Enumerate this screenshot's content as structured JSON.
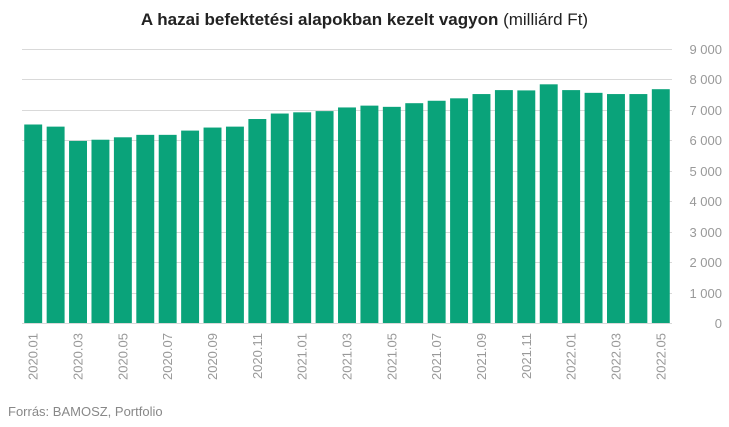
{
  "title_bold": "A hazai befektetési alapokban kezelt vagyon",
  "title_unit": " (milliárd Ft)",
  "source": "Forrás: BAMOSZ, Portfolio",
  "colors": {
    "bar": "#0aa37a",
    "grid": "#d9d9d9",
    "tick": "#999999"
  },
  "chart_data": {
    "type": "bar",
    "title": "A hazai befektetési alapokban kezelt vagyon (milliárd Ft)",
    "categories": [
      "2020.01",
      "2020.02",
      "2020.03",
      "2020.04",
      "2020.05",
      "2020.06",
      "2020.07",
      "2020.08",
      "2020.09",
      "2020.10",
      "2020.11",
      "2020.12",
      "2021.01",
      "2021.02",
      "2021.03",
      "2021.04",
      "2021.05",
      "2021.06",
      "2021.07",
      "2021.08",
      "2021.09",
      "2021.10",
      "2021.11",
      "2021.12",
      "2022.01",
      "2022.02",
      "2022.03",
      "2022.04",
      "2022.05"
    ],
    "x_tick_labels": [
      "2020.01",
      "",
      "2020.03",
      "",
      "2020.05",
      "",
      "2020.07",
      "",
      "2020.09",
      "",
      "2020.11",
      "",
      "2021.01",
      "",
      "2021.03",
      "",
      "2021.05",
      "",
      "2021.07",
      "",
      "2021.09",
      "",
      "2021.11",
      "",
      "2022.01",
      "",
      "2022.03",
      "",
      "2022.05"
    ],
    "values": [
      6520,
      6450,
      5980,
      6020,
      6100,
      6180,
      6180,
      6320,
      6420,
      6450,
      6700,
      6880,
      6920,
      6960,
      7080,
      7140,
      7100,
      7220,
      7300,
      7380,
      7520,
      7650,
      7640,
      7840,
      7650,
      7560,
      7520,
      7520,
      7680
    ],
    "ylim": [
      0,
      9000
    ],
    "yticks": [
      0,
      1000,
      2000,
      3000,
      4000,
      5000,
      6000,
      7000,
      8000,
      9000
    ],
    "ytick_labels": [
      "0",
      "1 000",
      "2 000",
      "3 000",
      "4 000",
      "5 000",
      "6 000",
      "7 000",
      "8 000",
      "9 000"
    ],
    "y_axis_side": "right",
    "grid": true,
    "xlabel": "",
    "ylabel": ""
  }
}
